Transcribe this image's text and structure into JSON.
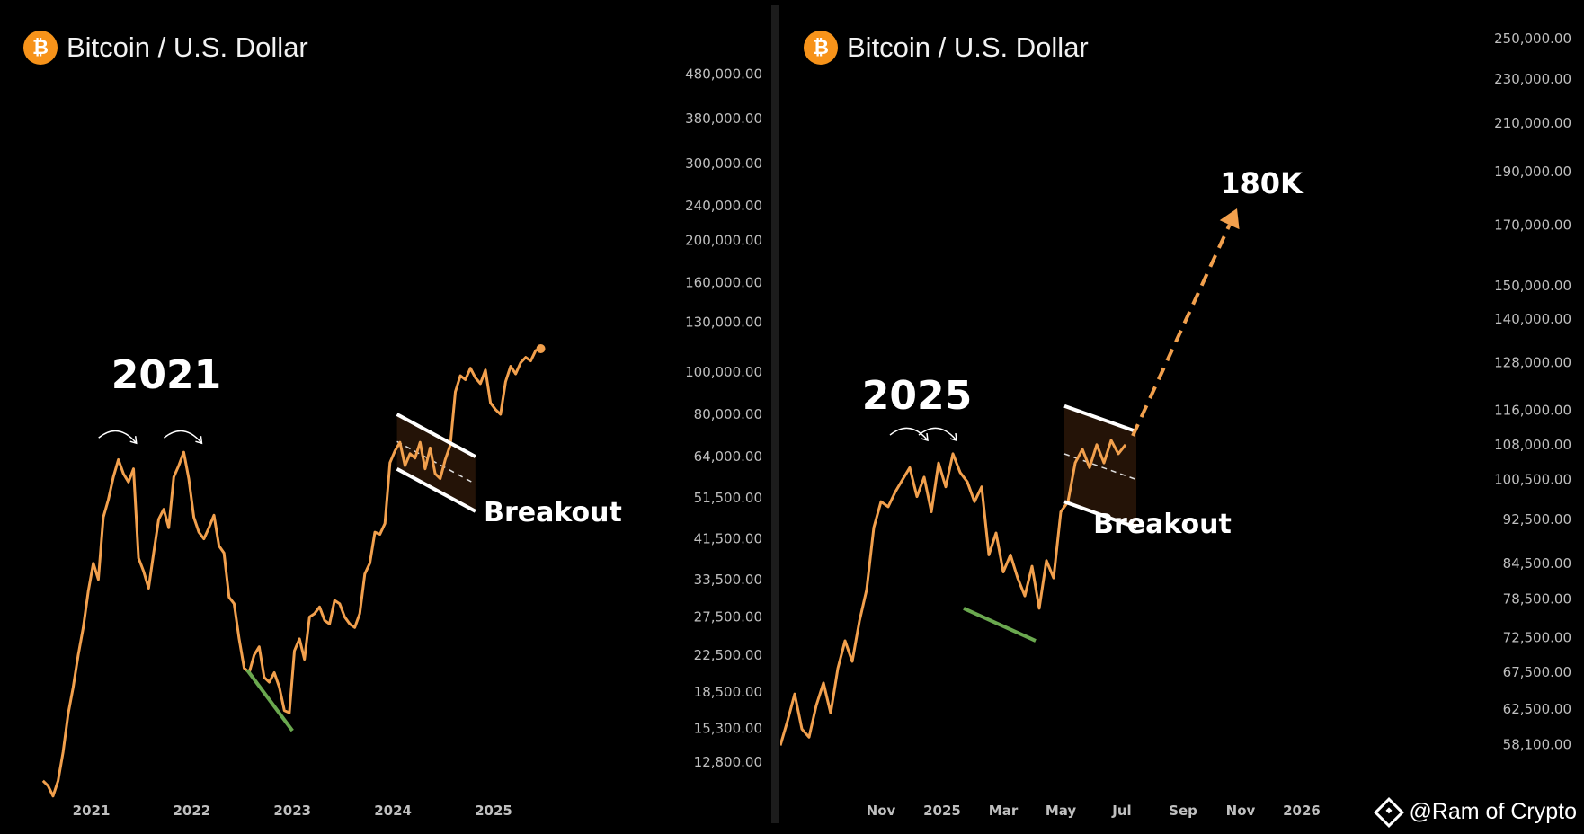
{
  "colors": {
    "price_line": "#f2a04d",
    "trendline": "#6aa84f",
    "channel": "#ffffff",
    "axis_text": "#bfbfbf",
    "btc_orange": "#f7931a",
    "arrow": "#f2a04d"
  },
  "icons": [
    "bitcoin-icon",
    "binance-square-icon"
  ],
  "watermark": "@Ram of Crypto",
  "chart_data": [
    {
      "type": "line",
      "title": "Bitcoin / U.S. Dollar",
      "xlabel": "",
      "ylabel": "",
      "y_scale": "log",
      "ylim": [
        11000,
        560000
      ],
      "xlim": [
        2020.45,
        2026.35
      ],
      "grid": false,
      "x_ticks": [
        {
          "value": 2021.0,
          "label": "2021"
        },
        {
          "value": 2022.0,
          "label": "2022"
        },
        {
          "value": 2023.0,
          "label": "2023"
        },
        {
          "value": 2024.0,
          "label": "2024"
        },
        {
          "value": 2025.0,
          "label": "2025"
        }
      ],
      "y_ticks": [
        {
          "value": 480000,
          "label": "480,000.00"
        },
        {
          "value": 380000,
          "label": "380,000.00"
        },
        {
          "value": 300000,
          "label": "300,000.00"
        },
        {
          "value": 240000,
          "label": "240,000.00"
        },
        {
          "value": 200000,
          "label": "200,000.00"
        },
        {
          "value": 160000,
          "label": "160,000.00"
        },
        {
          "value": 130000,
          "label": "130,000.00"
        },
        {
          "value": 100000,
          "label": "100,000.00"
        },
        {
          "value": 80000,
          "label": "80,000.00"
        },
        {
          "value": 64000,
          "label": "64,000.00"
        },
        {
          "value": 51500,
          "label": "51,500.00"
        },
        {
          "value": 41500,
          "label": "41,500.00"
        },
        {
          "value": 33500,
          "label": "33,500.00"
        },
        {
          "value": 27500,
          "label": "27,500.00"
        },
        {
          "value": 22500,
          "label": "22,500.00"
        },
        {
          "value": 18500,
          "label": "18,500.00"
        },
        {
          "value": 15300,
          "label": "15,300.00"
        },
        {
          "value": 12800,
          "label": "12,800.00"
        }
      ],
      "series": [
        {
          "x": [
            2020.52,
            2020.57,
            2020.62,
            2020.67,
            2020.72,
            2020.77,
            2020.82,
            2020.87,
            2020.92,
            2020.97,
            2021.02,
            2021.07,
            2021.12,
            2021.17,
            2021.22,
            2021.27,
            2021.32,
            2021.37,
            2021.42,
            2021.47,
            2021.52,
            2021.57,
            2021.62,
            2021.67,
            2021.72,
            2021.77,
            2021.82,
            2021.87,
            2021.92,
            2021.97,
            2022.02,
            2022.07,
            2022.12,
            2022.17,
            2022.22,
            2022.27,
            2022.32,
            2022.37,
            2022.42,
            2022.47,
            2022.52,
            2022.57,
            2022.62,
            2022.67,
            2022.72,
            2022.77,
            2022.82,
            2022.87,
            2022.92,
            2022.97,
            2023.02,
            2023.07,
            2023.12,
            2023.17,
            2023.22,
            2023.27,
            2023.32,
            2023.37,
            2023.42,
            2023.47,
            2023.52,
            2023.57,
            2023.62,
            2023.67,
            2023.72,
            2023.77,
            2023.82,
            2023.87,
            2023.92,
            2023.97,
            2024.02,
            2024.07,
            2024.12,
            2024.17,
            2024.22,
            2024.27,
            2024.32,
            2024.37,
            2024.42,
            2024.47,
            2024.52,
            2024.57,
            2024.62,
            2024.67,
            2024.72,
            2024.77,
            2024.82,
            2024.87,
            2024.92,
            2024.97,
            2025.02,
            2025.07,
            2025.12,
            2025.17,
            2025.22,
            2025.27,
            2025.32,
            2025.37,
            2025.42,
            2025.47
          ],
          "y": [
            11600,
            11300,
            10700,
            11600,
            13500,
            16500,
            19000,
            22500,
            26000,
            31500,
            36500,
            33500,
            46500,
            51000,
            57500,
            63000,
            58500,
            56000,
            60000,
            37500,
            35000,
            32000,
            38500,
            46000,
            48500,
            44000,
            57500,
            61000,
            65500,
            57000,
            46500,
            43000,
            41500,
            44000,
            47000,
            40000,
            38500,
            30500,
            29500,
            24500,
            21000,
            20500,
            22500,
            23500,
            20000,
            19500,
            20500,
            19000,
            16800,
            16600,
            23000,
            24500,
            22000,
            27500,
            28000,
            29000,
            27000,
            26500,
            30000,
            29500,
            27500,
            26500,
            26000,
            28000,
            34500,
            36500,
            43000,
            42500,
            45000,
            62000,
            66000,
            69000,
            61000,
            65000,
            63500,
            69000,
            60000,
            67000,
            58500,
            57000,
            63000,
            68000,
            90000,
            98000,
            96000,
            102000,
            97000,
            94000,
            101000,
            85000,
            82000,
            80000,
            95000,
            103000,
            99000,
            105000,
            108000,
            106000,
            112000,
            113000
          ]
        }
      ],
      "annotations": [
        {
          "text": "2021"
        },
        {
          "text": "Breakout"
        }
      ],
      "channel": {
        "start_x": 2024.04,
        "end_x": 2024.82,
        "upper": [
          80000,
          64000
        ],
        "lower": [
          60000,
          48000
        ]
      },
      "support_line": {
        "start_x": 2022.55,
        "end_x": 2023.0,
        "y": [
          20800,
          15100
        ]
      }
    },
    {
      "type": "line",
      "title": "Bitcoin / U.S. Dollar",
      "xlabel": "",
      "ylabel": "",
      "y_scale": "log",
      "ylim": [
        55000,
        260000
      ],
      "xlim": [
        2024.55,
        2026.35
      ],
      "grid": false,
      "x_ticks": [
        {
          "value": 2024.83,
          "label": "Nov"
        },
        {
          "value": 2025.0,
          "label": "2025"
        },
        {
          "value": 2025.17,
          "label": "Mar"
        },
        {
          "value": 2025.33,
          "label": "May"
        },
        {
          "value": 2025.5,
          "label": "Jul"
        },
        {
          "value": 2025.67,
          "label": "Sep"
        },
        {
          "value": 2025.83,
          "label": "Nov"
        },
        {
          "value": 2026.0,
          "label": "2026"
        }
      ],
      "y_ticks": [
        {
          "value": 250000,
          "label": "250,000.00"
        },
        {
          "value": 230000,
          "label": "230,000.00"
        },
        {
          "value": 210000,
          "label": "210,000.00"
        },
        {
          "value": 190000,
          "label": "190,000.00"
        },
        {
          "value": 170000,
          "label": "170,000.00"
        },
        {
          "value": 150000,
          "label": "150,000.00"
        },
        {
          "value": 140000,
          "label": "140,000.00"
        },
        {
          "value": 128000,
          "label": "128,000.00"
        },
        {
          "value": 116000,
          "label": "116,000.00"
        },
        {
          "value": 108000,
          "label": "108,000.00"
        },
        {
          "value": 100500,
          "label": "100,500.00"
        },
        {
          "value": 92500,
          "label": "92,500.00"
        },
        {
          "value": 84500,
          "label": "84,500.00"
        },
        {
          "value": 78500,
          "label": "78,500.00"
        },
        {
          "value": 72500,
          "label": "72,500.00"
        },
        {
          "value": 67500,
          "label": "67,500.00"
        },
        {
          "value": 62500,
          "label": "62,500.00"
        },
        {
          "value": 58100,
          "label": "58,100.00"
        }
      ],
      "series": [
        {
          "x": [
            2024.55,
            2024.57,
            2024.59,
            2024.61,
            2024.63,
            2024.65,
            2024.67,
            2024.69,
            2024.71,
            2024.73,
            2024.75,
            2024.77,
            2024.79,
            2024.81,
            2024.83,
            2024.85,
            2024.87,
            2024.89,
            2024.91,
            2024.93,
            2024.95,
            2024.97,
            2024.99,
            2025.01,
            2025.03,
            2025.05,
            2025.07,
            2025.09,
            2025.11,
            2025.13,
            2025.15,
            2025.17,
            2025.19,
            2025.21,
            2025.23,
            2025.25,
            2025.27,
            2025.29,
            2025.31,
            2025.33,
            2025.35,
            2025.37,
            2025.39,
            2025.41,
            2025.43,
            2025.45,
            2025.47,
            2025.49,
            2025.51
          ],
          "y": [
            58000,
            61000,
            64500,
            60000,
            59000,
            63000,
            66000,
            62000,
            68000,
            72000,
            69000,
            75000,
            80000,
            91000,
            96000,
            95000,
            98000,
            100500,
            103000,
            97000,
            101000,
            94000,
            104000,
            99000,
            106000,
            102000,
            100000,
            96000,
            99000,
            86000,
            90000,
            83000,
            86000,
            82000,
            79000,
            84000,
            77000,
            85000,
            82000,
            94000,
            96000,
            104000,
            107000,
            103000,
            108000,
            104000,
            109000,
            106000,
            108000
          ]
        }
      ],
      "annotations": [
        {
          "text": "2025"
        },
        {
          "text": "Breakout"
        },
        {
          "text": "180K"
        }
      ],
      "channel": {
        "start_x": 2025.34,
        "end_x": 2025.54,
        "upper": [
          117000,
          111000
        ],
        "lower": [
          96000,
          91000
        ]
      },
      "support_line": {
        "start_x": 2025.06,
        "end_x": 2025.26,
        "y": [
          77000,
          72000
        ]
      },
      "projection": {
        "from": [
          2025.53,
          110000
        ],
        "to": [
          2025.82,
          176000
        ]
      }
    }
  ]
}
